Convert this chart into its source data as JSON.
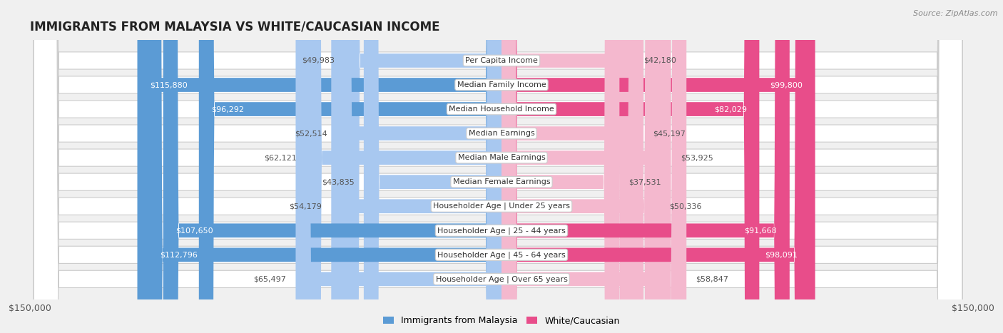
{
  "title": "IMMIGRANTS FROM MALAYSIA VS WHITE/CAUCASIAN INCOME",
  "source": "Source: ZipAtlas.com",
  "categories": [
    "Per Capita Income",
    "Median Family Income",
    "Median Household Income",
    "Median Earnings",
    "Median Male Earnings",
    "Median Female Earnings",
    "Householder Age | Under 25 years",
    "Householder Age | 25 - 44 years",
    "Householder Age | 45 - 64 years",
    "Householder Age | Over 65 years"
  ],
  "malaysia_values": [
    49983,
    115880,
    96292,
    52514,
    62121,
    43835,
    54179,
    107650,
    112796,
    65497
  ],
  "white_values": [
    42180,
    99800,
    82029,
    45197,
    53925,
    37531,
    50336,
    91668,
    98091,
    58847
  ],
  "malaysia_labels": [
    "$49,983",
    "$115,880",
    "$96,292",
    "$52,514",
    "$62,121",
    "$43,835",
    "$54,179",
    "$107,650",
    "$112,796",
    "$65,497"
  ],
  "white_labels": [
    "$42,180",
    "$99,800",
    "$82,029",
    "$45,197",
    "$53,925",
    "$37,531",
    "$50,336",
    "$91,668",
    "$98,091",
    "$58,847"
  ],
  "malaysia_color_light": "#a8c8f0",
  "malaysia_color_dark": "#5b9bd5",
  "white_color_light": "#f4b8ce",
  "white_color_dark": "#e84d8a",
  "malaysia_inside_threshold": 75000,
  "white_inside_threshold": 65000,
  "axis_limit": 150000,
  "axis_label_left": "$150,000",
  "axis_label_right": "$150,000",
  "legend_malaysia": "Immigrants from Malaysia",
  "legend_white": "White/Caucasian",
  "bar_height": 0.58,
  "background_color": "#f0f0f0",
  "row_bg_color": "#ffffff",
  "row_border_color": "#cccccc",
  "title_fontsize": 12,
  "source_fontsize": 8,
  "label_fontsize": 8,
  "cat_fontsize": 8
}
